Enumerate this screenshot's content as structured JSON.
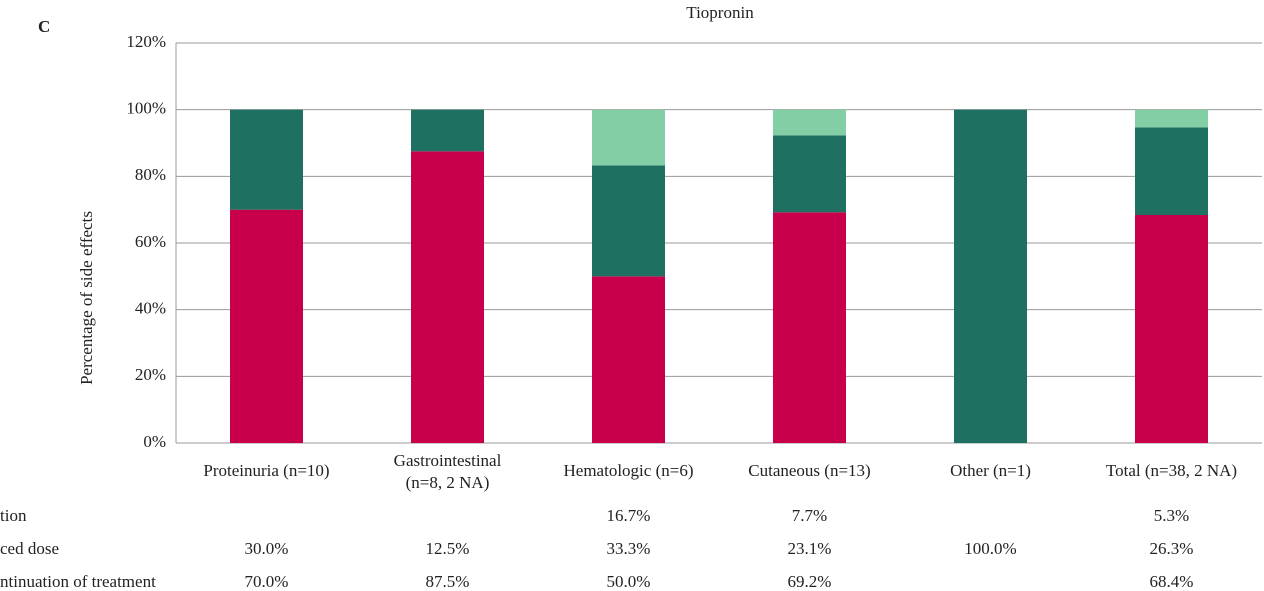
{
  "chart_data": {
    "type": "stacked_bar",
    "panel_label": "C",
    "title": "Tiopronin",
    "y_label": "Percentage of side effects",
    "categories": [
      [
        "Proteinuria (n=10)"
      ],
      [
        "Gastrointestinal",
        "(n=8, 2 NA)"
      ],
      [
        "Hematologic (n=6)"
      ],
      [
        "Cutaneous (n=13)"
      ],
      [
        "Other (n=1)"
      ],
      [
        "Total (n=38, 2 NA)"
      ]
    ],
    "series": [
      {
        "name": "tion",
        "color": "#82cfa6",
        "values": [
          null,
          null,
          16.7,
          7.7,
          null,
          5.3
        ],
        "value_labels": [
          null,
          null,
          "16.7%",
          "7.7%",
          null,
          "5.3%"
        ]
      },
      {
        "name": "ced dose",
        "color": "#1e7060",
        "values": [
          30.0,
          12.5,
          33.3,
          23.1,
          100.0,
          26.3
        ],
        "value_labels": [
          "30.0%",
          "12.5%",
          "33.3%",
          "23.1%",
          "100.0%",
          "26.3%"
        ]
      },
      {
        "name": "ntinuation of treatment",
        "color": "#c8004c",
        "values": [
          70.0,
          87.5,
          50.0,
          69.2,
          null,
          68.4
        ],
        "value_labels": [
          "70.0%",
          "87.5%",
          "50.0%",
          "69.2%",
          null,
          "68.4%"
        ]
      }
    ],
    "ylim": [
      0,
      120
    ],
    "yticks": [
      {
        "value": 0,
        "label": "0%"
      },
      {
        "value": 20,
        "label": "20%"
      },
      {
        "value": 40,
        "label": "40%"
      },
      {
        "value": 60,
        "label": "60%"
      },
      {
        "value": 80,
        "label": "80%"
      },
      {
        "value": 100,
        "label": "100%"
      },
      {
        "value": 120,
        "label": "120%"
      }
    ],
    "grid": true
  }
}
